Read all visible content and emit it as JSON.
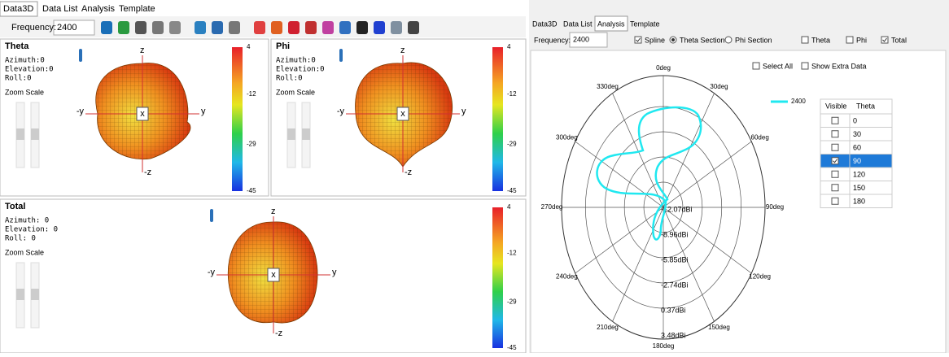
{
  "left_panel": {
    "tabs": [
      "Data3D",
      "Data List",
      "Analysis",
      "Template"
    ],
    "frequency_label": "Frequency:",
    "frequency": "2400",
    "views": [
      {
        "title": "Theta",
        "info": [
          "Azimuth:0",
          "Elevation:0",
          "Roll:0"
        ],
        "zoom": "Zoom Scale",
        "axes": {
          "z": "z",
          "neg_z": "-z",
          "y": "y",
          "neg_y": "-y",
          "x": "x"
        },
        "colorbar": [
          4,
          -12,
          -29,
          -45
        ]
      },
      {
        "title": "Phi",
        "info": [
          "Azimuth:0",
          "Elevation:0",
          "Roll:0"
        ],
        "zoom": "Zoom Scale",
        "axes": {
          "z": "z",
          "neg_z": "-z",
          "y": "y",
          "neg_y": "-y",
          "x": "x"
        },
        "colorbar": [
          4,
          -12,
          -29,
          -45
        ]
      },
      {
        "title": "Total",
        "info": [
          "Azimuth: 0",
          "Elevation: 0",
          "Roll: 0"
        ],
        "zoom": "Zoom Scale",
        "axes": {
          "z": "z",
          "neg_z": "-z",
          "y": "y",
          "neg_y": "-y",
          "x": "x"
        },
        "colorbar": [
          4,
          -12,
          -29,
          -45
        ]
      }
    ]
  },
  "right_panel": {
    "tabs": [
      "Data3D",
      "Data List",
      "Analysis",
      "Template"
    ],
    "frequency_label": "Frequency:",
    "frequency": "2400",
    "spline": "Spline",
    "theta_section": "Theta Section",
    "phi_section": "Phi Section",
    "theta": "Theta",
    "phi": "Phi",
    "total": "Total",
    "select_all": "Select All",
    "show_extra": "Show Extra Data",
    "legend": "2400",
    "angle_labels": [
      "0deg",
      "330deg",
      "300deg",
      "270deg",
      "240deg",
      "210deg",
      "180deg",
      "150deg",
      "120deg",
      "90deg",
      "60deg",
      "30deg"
    ],
    "ring_labels": [
      "-12.07dBi",
      "-8.96dBi",
      "-5.85dBi",
      "-2.74dBi",
      "0.37dBi",
      "3.48dBi"
    ],
    "table": {
      "headers": [
        "Visible",
        "Theta"
      ],
      "rows": [
        "0",
        "30",
        "60",
        "90",
        "120",
        "150",
        "180"
      ]
    }
  }
}
